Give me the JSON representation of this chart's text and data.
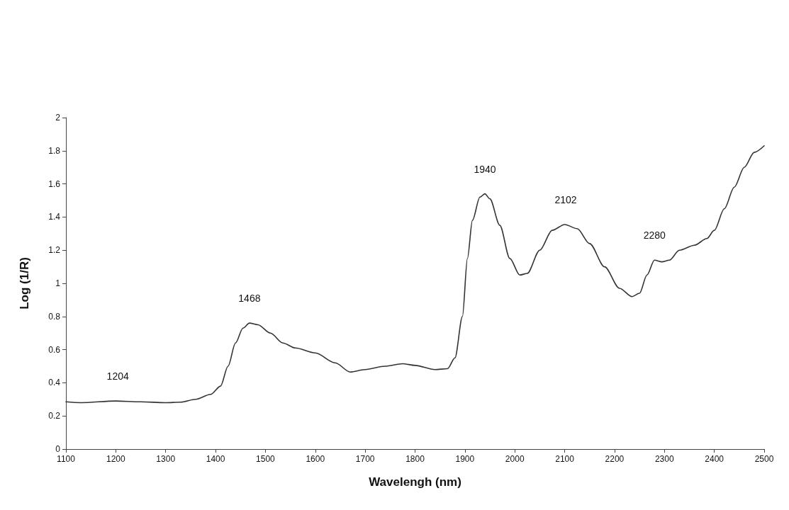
{
  "chart_data": {
    "type": "line",
    "xlabel": "Wavelengh (nm)",
    "ylabel": "Log (1/R)",
    "x": [
      1100,
      1130,
      1200,
      1250,
      1300,
      1330,
      1360,
      1390,
      1410,
      1425,
      1440,
      1455,
      1468,
      1485,
      1510,
      1535,
      1560,
      1600,
      1640,
      1670,
      1700,
      1740,
      1775,
      1800,
      1840,
      1865,
      1880,
      1895,
      1905,
      1915,
      1930,
      1940,
      1950,
      1970,
      1990,
      2010,
      2025,
      2050,
      2075,
      2100,
      2125,
      2150,
      2180,
      2210,
      2235,
      2250,
      2265,
      2280,
      2295,
      2310,
      2330,
      2360,
      2385,
      2400,
      2420,
      2440,
      2460,
      2480,
      2500
    ],
    "series": [
      {
        "color": "#333333",
        "values": [
          0.285,
          0.28,
          0.29,
          0.285,
          0.28,
          0.283,
          0.3,
          0.33,
          0.38,
          0.5,
          0.64,
          0.73,
          0.76,
          0.75,
          0.7,
          0.64,
          0.61,
          0.58,
          0.52,
          0.465,
          0.48,
          0.5,
          0.515,
          0.505,
          0.48,
          0.485,
          0.55,
          0.8,
          1.15,
          1.38,
          1.52,
          1.54,
          1.51,
          1.35,
          1.15,
          1.05,
          1.06,
          1.2,
          1.32,
          1.355,
          1.33,
          1.24,
          1.1,
          0.97,
          0.92,
          0.94,
          1.05,
          1.14,
          1.13,
          1.14,
          1.2,
          1.23,
          1.27,
          1.32,
          1.45,
          1.58,
          1.7,
          1.79,
          1.83
        ]
      }
    ],
    "xlim": [
      1100,
      2500
    ],
    "xticks": [
      1100,
      1200,
      1300,
      1400,
      1500,
      1600,
      1700,
      1800,
      1900,
      2000,
      2100,
      2200,
      2300,
      2400,
      2500
    ],
    "ylim": [
      0,
      2
    ],
    "yticks": [
      0,
      0.2,
      0.4,
      0.6,
      0.8,
      1,
      1.2,
      1.4,
      1.6,
      1.8,
      2
    ],
    "annotations": [
      {
        "text": "1204",
        "x": 1204,
        "y": 0.29
      },
      {
        "text": "1468",
        "x": 1468,
        "y": 0.76
      },
      {
        "text": "1940",
        "x": 1940,
        "y": 1.54
      },
      {
        "text": "2102",
        "x": 2102,
        "y": 1.355
      },
      {
        "text": "2280",
        "x": 2280,
        "y": 1.14
      }
    ],
    "grid": false,
    "marker": "none",
    "line_style": "solid"
  }
}
